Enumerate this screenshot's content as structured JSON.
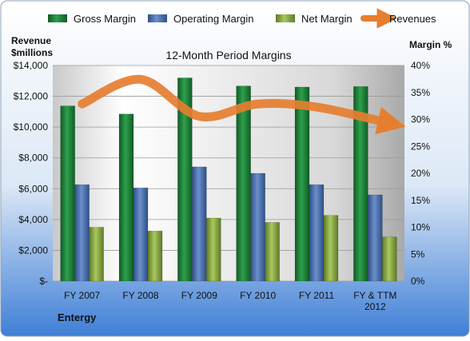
{
  "chart_data": {
    "type": "bar",
    "title": "12-Month Period Margins",
    "left_axis_label": [
      "Revenue",
      "$millions"
    ],
    "right_axis_label": "Margin %",
    "company": "Entergy",
    "categories": [
      "FY 2007",
      "FY 2008",
      "FY 2009",
      "FY 2010",
      "FY 2011",
      "FY & TTM|2012"
    ],
    "series": [
      {
        "name": "Gross Margin",
        "axis": "right",
        "values": [
          32.5,
          31.0,
          37.7,
          36.2,
          36.0,
          36.1
        ],
        "color": "#1e8a3c"
      },
      {
        "name": "Operating Margin",
        "axis": "right",
        "values": [
          17.9,
          17.3,
          21.2,
          20.0,
          17.9,
          16.0
        ],
        "color": "#4a6fb0"
      },
      {
        "name": "Net Margin",
        "axis": "right",
        "values": [
          10.0,
          9.3,
          11.7,
          10.9,
          12.2,
          8.2
        ],
        "color": "#8fb045"
      },
      {
        "name": "Revenues",
        "axis": "left",
        "type": "line",
        "values": [
          11500,
          13100,
          10700,
          11500,
          11300,
          10300
        ],
        "color": "#e67e30"
      }
    ],
    "left_ylim": [
      0,
      14000
    ],
    "left_ticks": [
      "$-",
      "$2,000",
      "$4,000",
      "$6,000",
      "$8,000",
      "$10,000",
      "$12,000",
      "$14,000"
    ],
    "right_ylim": [
      0,
      40
    ],
    "right_ticks": [
      "0%",
      "5%",
      "10%",
      "15%",
      "20%",
      "25%",
      "30%",
      "35%",
      "40%"
    ],
    "legend_position": "top",
    "grid": true
  }
}
